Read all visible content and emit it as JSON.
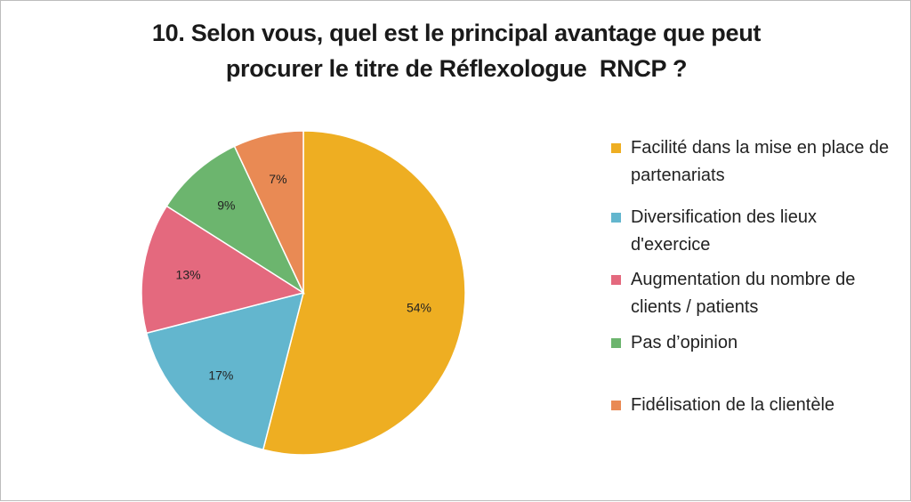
{
  "chart_data": {
    "type": "pie",
    "title_lines": [
      "10. Selon vous, quel est le principal avantage que peut",
      "procurer le titre de Réflexologue  RNCP ?"
    ],
    "slices": [
      {
        "name": "Facilité dans la mise en place de partenariats",
        "value": 54,
        "label": "54%",
        "color": "#EEAE22"
      },
      {
        "name": "Diversification des lieux d'exercice",
        "value": 17,
        "label": "17%",
        "color": "#63B6CE"
      },
      {
        "name": "Augmentation du nombre de clients / patients",
        "value": 13,
        "label": "13%",
        "color": "#E4697E"
      },
      {
        "name": "Pas d’opinion",
        "value": 9,
        "label": "9%",
        "color": "#6CB56E"
      },
      {
        "name": "Fidélisation de la clientèle",
        "value": 7,
        "label": "7%",
        "color": "#E98A54"
      }
    ],
    "legend_position": "right"
  }
}
